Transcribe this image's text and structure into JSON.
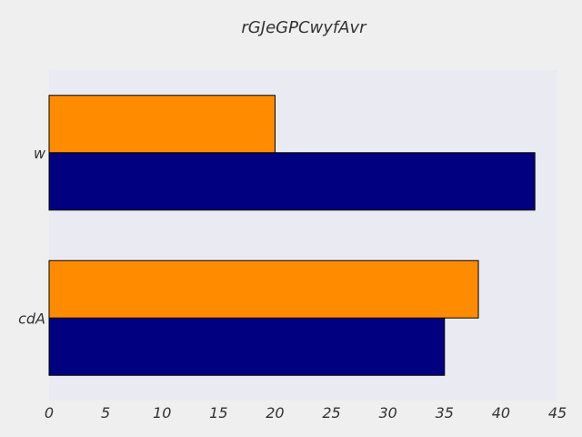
{
  "chart_data": {
    "type": "bar",
    "orientation": "horizontal",
    "title": "rGJeGPCwyfAvr",
    "xlabel": "",
    "ylabel": "",
    "categories": [
      "w",
      "cdA"
    ],
    "series": [
      {
        "values": [
          43,
          35
        ],
        "color": "#000080"
      },
      {
        "values": [
          20,
          38
        ],
        "color": "#FF8C00"
      }
    ],
    "xlim": [
      0,
      45
    ],
    "xticks": [
      0,
      5,
      10,
      15,
      20,
      25,
      30,
      35,
      40,
      45
    ],
    "grid": false,
    "legend": "none",
    "colors": {
      "plot_background": "#EAEAF2",
      "figure_background": "#EFEFEF"
    }
  }
}
